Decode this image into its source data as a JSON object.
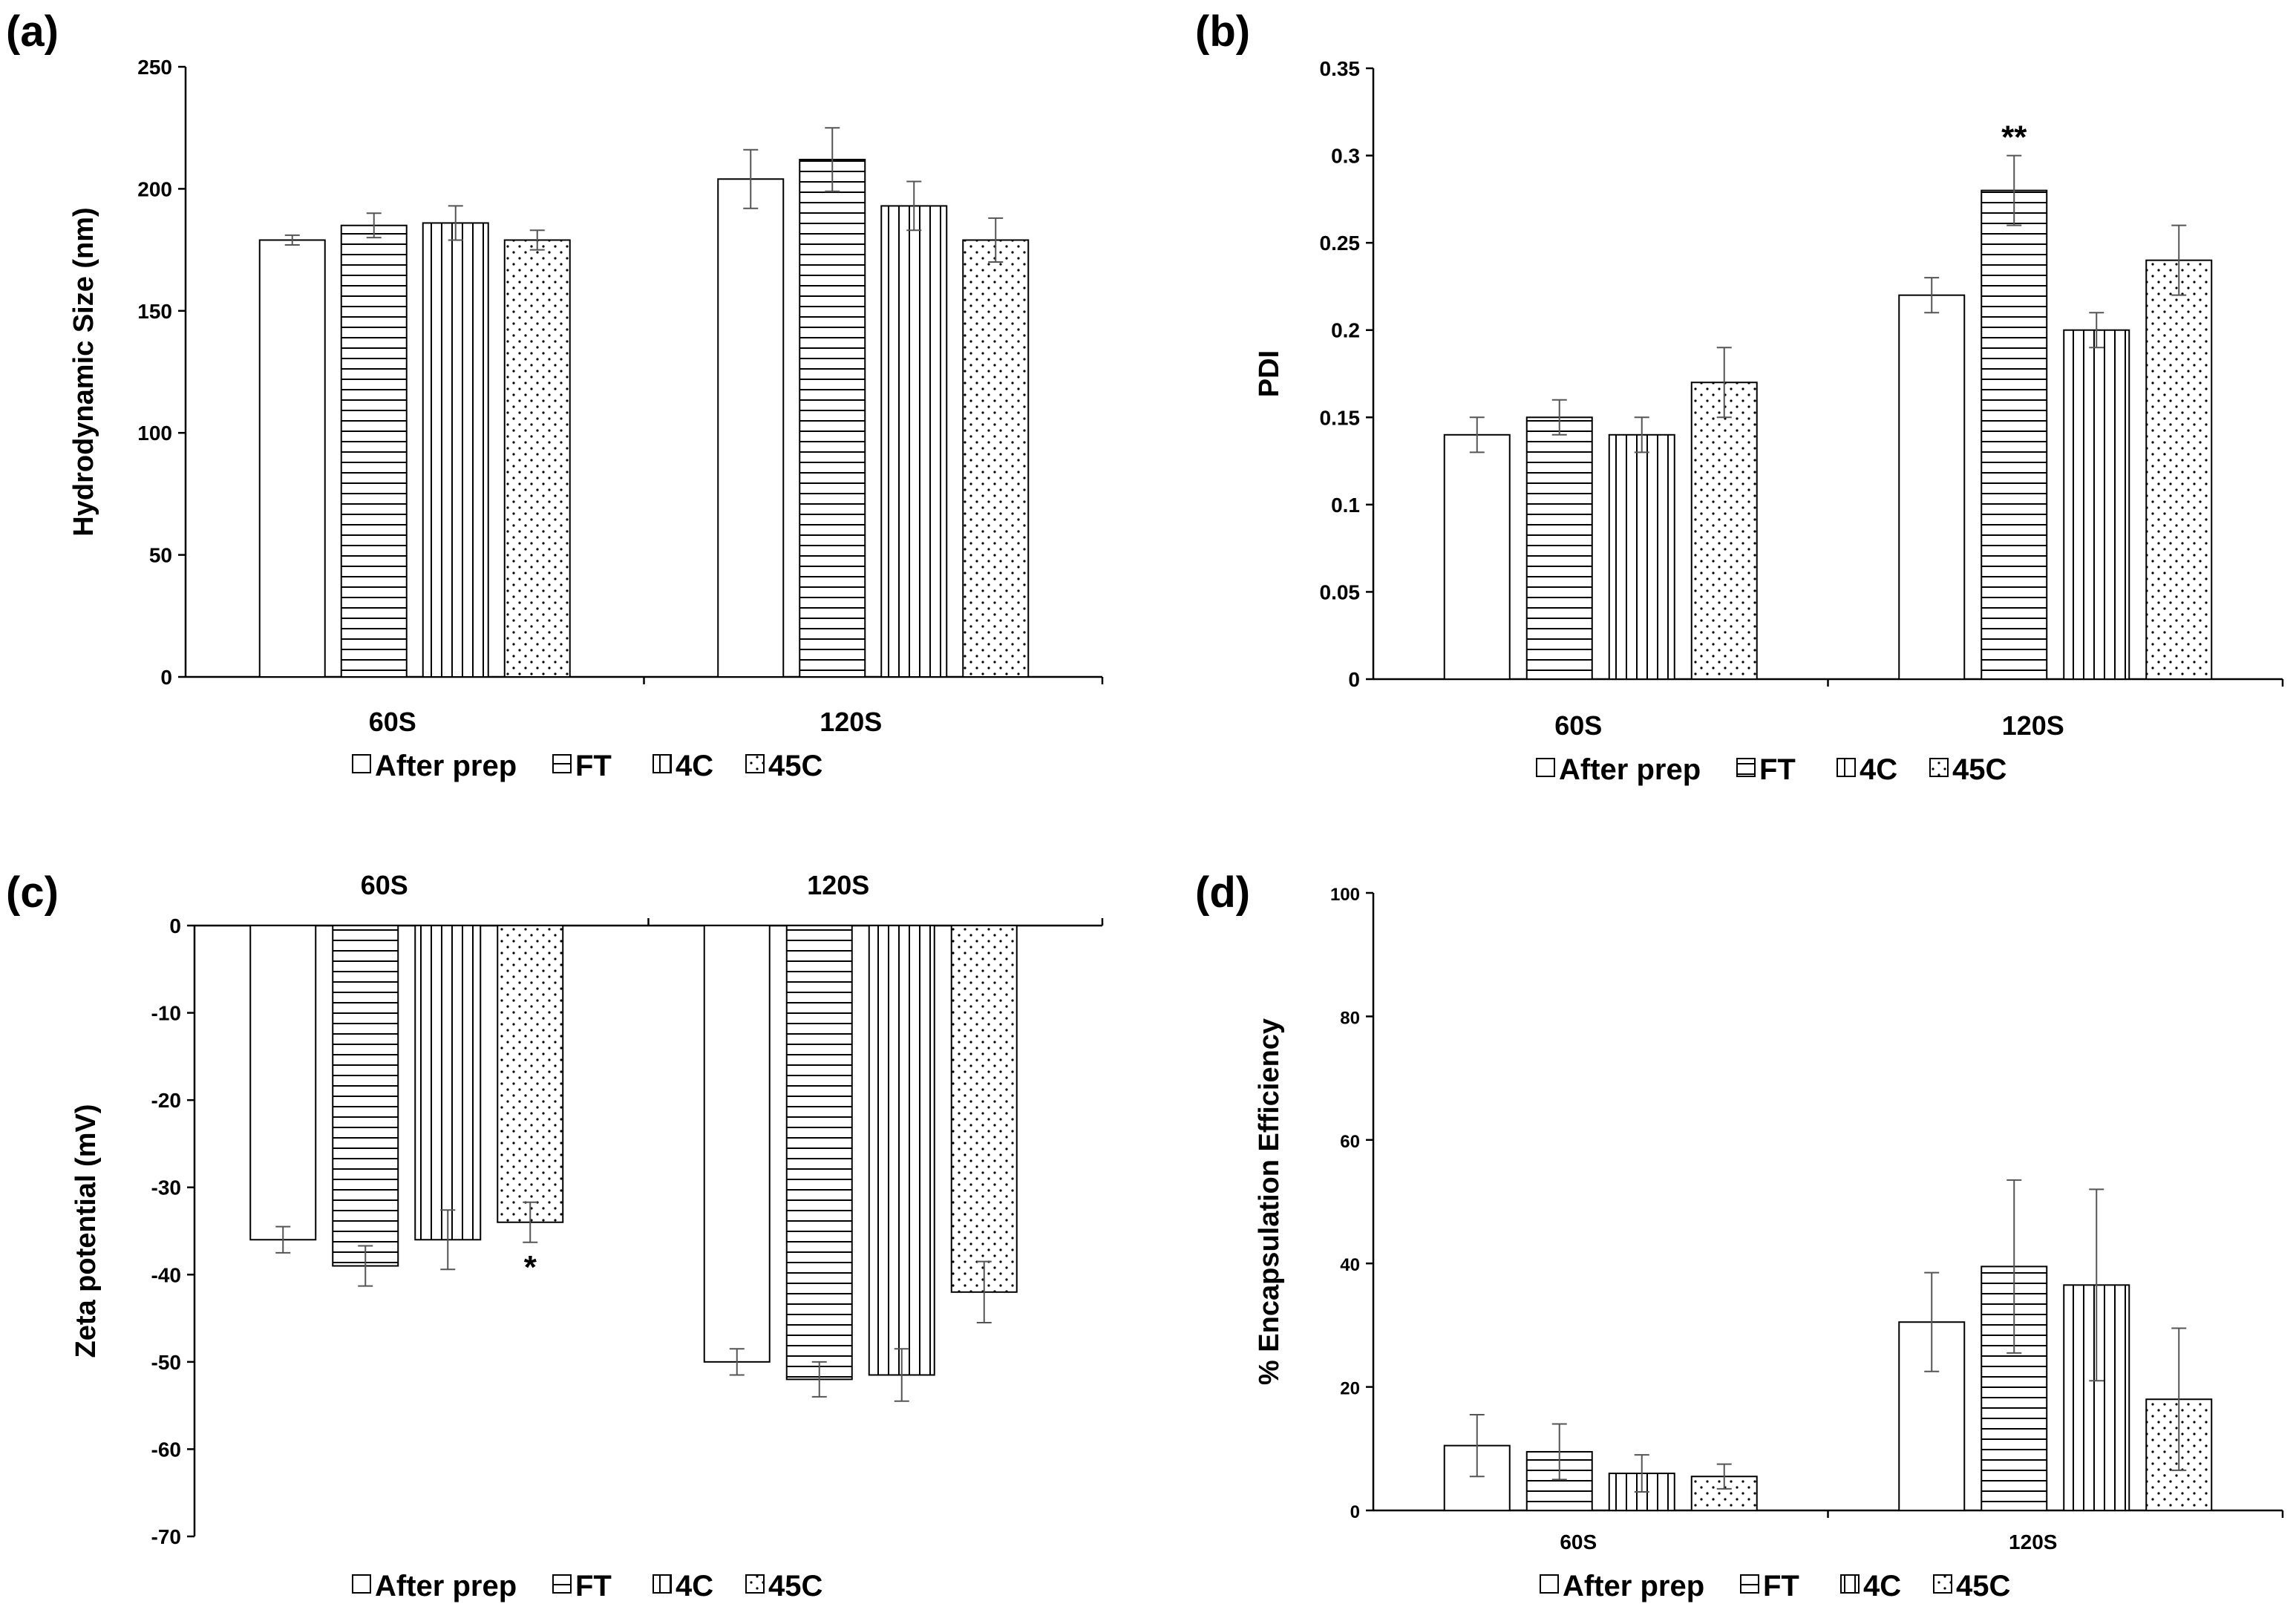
{
  "legend": {
    "series": [
      "After prep",
      "FT",
      "4C",
      "45C"
    ]
  },
  "chart_data": [
    {
      "id": "a",
      "panel_label": "(a)",
      "type": "bar",
      "ylabel": "Hydrodynamic Size (nm)",
      "ylim": [
        0,
        250
      ],
      "yticks": [
        "0",
        "50",
        "100",
        "150",
        "200",
        "250"
      ],
      "categories": [
        "60S",
        "120S"
      ],
      "series": [
        {
          "name": "After prep",
          "values": [
            179,
            204
          ],
          "errors": [
            2,
            12
          ]
        },
        {
          "name": "FT",
          "values": [
            185,
            212
          ],
          "errors": [
            5,
            13
          ]
        },
        {
          "name": "4C",
          "values": [
            186,
            193
          ],
          "errors": [
            7,
            10
          ]
        },
        {
          "name": "45C",
          "values": [
            179,
            179
          ],
          "errors": [
            4,
            9
          ]
        }
      ],
      "annotations": []
    },
    {
      "id": "b",
      "panel_label": "(b)",
      "type": "bar",
      "ylabel": "PDI",
      "ylim": [
        0,
        0.35
      ],
      "yticks": [
        "0",
        "0.05",
        "0.1",
        "0.15",
        "0.2",
        "0.25",
        "0.3",
        "0.35"
      ],
      "categories": [
        "60S",
        "120S"
      ],
      "series": [
        {
          "name": "After prep",
          "values": [
            0.14,
            0.22
          ],
          "errors": [
            0.01,
            0.01
          ]
        },
        {
          "name": "FT",
          "values": [
            0.15,
            0.28
          ],
          "errors": [
            0.01,
            0.02
          ]
        },
        {
          "name": "4C",
          "values": [
            0.14,
            0.2
          ],
          "errors": [
            0.01,
            0.01
          ]
        },
        {
          "name": "45C",
          "values": [
            0.17,
            0.24
          ],
          "errors": [
            0.02,
            0.02
          ]
        }
      ],
      "annotations": [
        {
          "category": 1,
          "series": 1,
          "text": "**"
        }
      ]
    },
    {
      "id": "c",
      "panel_label": "(c)",
      "type": "bar",
      "ylabel": "Zeta potential (mV)",
      "ylim": [
        -70,
        0
      ],
      "yticks": [
        "0",
        "-10",
        "-20",
        "-30",
        "-40",
        "-50",
        "-60",
        "-70"
      ],
      "categories": [
        "60S",
        "120S"
      ],
      "series": [
        {
          "name": "After prep",
          "values": [
            -36,
            -50
          ],
          "errors": [
            1.5,
            1.5
          ]
        },
        {
          "name": "FT",
          "values": [
            -39,
            -52
          ],
          "errors": [
            2.3,
            2
          ]
        },
        {
          "name": "4C",
          "values": [
            -36,
            -51.5
          ],
          "errors": [
            3.4,
            3
          ]
        },
        {
          "name": "45C",
          "values": [
            -34,
            -42
          ],
          "errors": [
            2.3,
            3.5
          ]
        }
      ],
      "annotations": [
        {
          "category": 0,
          "series": 3,
          "text": "*"
        }
      ]
    },
    {
      "id": "d",
      "panel_label": "(d)",
      "type": "bar",
      "ylabel": "% Encapsulation Efficiency",
      "ylim": [
        0,
        100
      ],
      "yticks": [
        "0",
        "20",
        "40",
        "60",
        "80",
        "100"
      ],
      "categories": [
        "60S",
        "120S"
      ],
      "series": [
        {
          "name": "After prep",
          "values": [
            10.5,
            30.5
          ],
          "errors": [
            5,
            8
          ]
        },
        {
          "name": "FT",
          "values": [
            9.5,
            39.5
          ],
          "errors": [
            4.5,
            14
          ]
        },
        {
          "name": "4C",
          "values": [
            6,
            36.5
          ],
          "errors": [
            3,
            15.5
          ]
        },
        {
          "name": "45C",
          "values": [
            5.5,
            18
          ],
          "errors": [
            2,
            11.5
          ]
        }
      ],
      "annotations": []
    }
  ]
}
